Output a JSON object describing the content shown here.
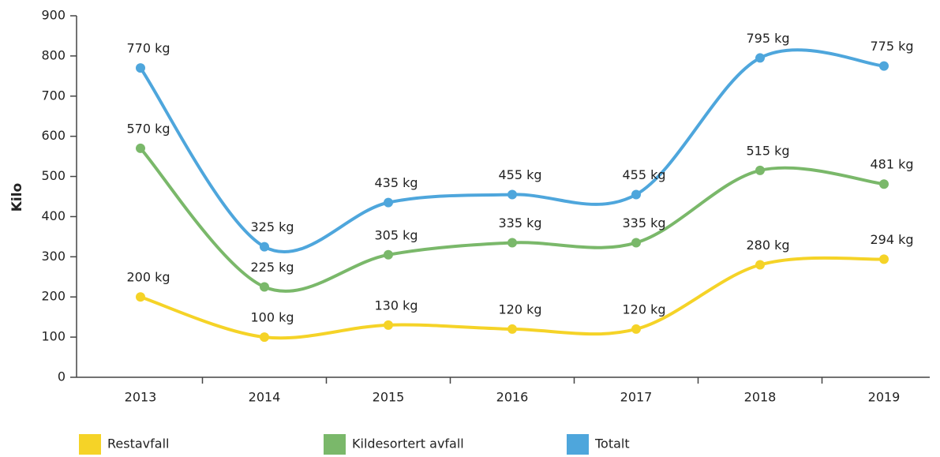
{
  "chart_data": {
    "type": "line",
    "ylabel": "Kilo",
    "categories": [
      "2013",
      "2014",
      "2015",
      "2016",
      "2017",
      "2018",
      "2019"
    ],
    "ylim": [
      0,
      900
    ],
    "yticks": [
      0,
      100,
      200,
      300,
      400,
      500,
      600,
      700,
      800,
      900
    ],
    "grid": false,
    "legend": "bottom",
    "series": [
      {
        "name": "Restavfall",
        "color": "#f5d327",
        "values": [
          200,
          100,
          130,
          120,
          120,
          280,
          294
        ],
        "value_labels": [
          "200 kg",
          "100 kg",
          "130 kg",
          "120 kg",
          "120 kg",
          "280 kg",
          "294 kg"
        ]
      },
      {
        "name": "Kildesortert avfall",
        "color": "#7ab86a",
        "values": [
          570,
          225,
          305,
          335,
          335,
          515,
          481
        ],
        "value_labels": [
          "570 kg",
          "225 kg",
          "305 kg",
          "335 kg",
          "335 kg",
          "515 kg",
          "481 kg"
        ]
      },
      {
        "name": "Totalt",
        "color": "#4ea6dc",
        "values": [
          770,
          325,
          435,
          455,
          455,
          795,
          775
        ],
        "value_labels": [
          "770 kg",
          "325 kg",
          "435 kg",
          "455 kg",
          "455 kg",
          "795 kg",
          "775 kg"
        ]
      }
    ]
  }
}
